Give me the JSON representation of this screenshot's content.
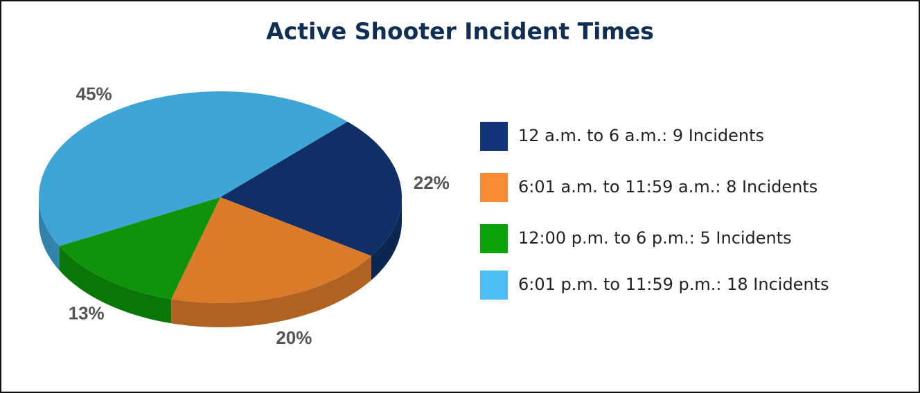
{
  "chart_data": {
    "type": "pie",
    "title": "Active Shooter Incident Times",
    "categories": [
      "12 a.m. to 6 a.m.: 9 Incidents",
      "6:01 a.m. to 11:59 a.m.: 8 Incidents",
      "12:00 p.m. to 6 p.m.: 5 Incidents",
      "6:01 p.m. to 11:59 p.m.: 18 Incidents"
    ],
    "values": [
      22,
      20,
      13,
      45
    ],
    "value_labels": [
      "22%",
      "20%",
      "13%",
      "45%"
    ],
    "colors": [
      "#0f2f66",
      "#db7b2a",
      "#0e930a",
      "#3fa4d6"
    ],
    "legend_colors": [
      "#13337a",
      "#f68b33",
      "#0ca30a",
      "#4cbdf2"
    ]
  }
}
